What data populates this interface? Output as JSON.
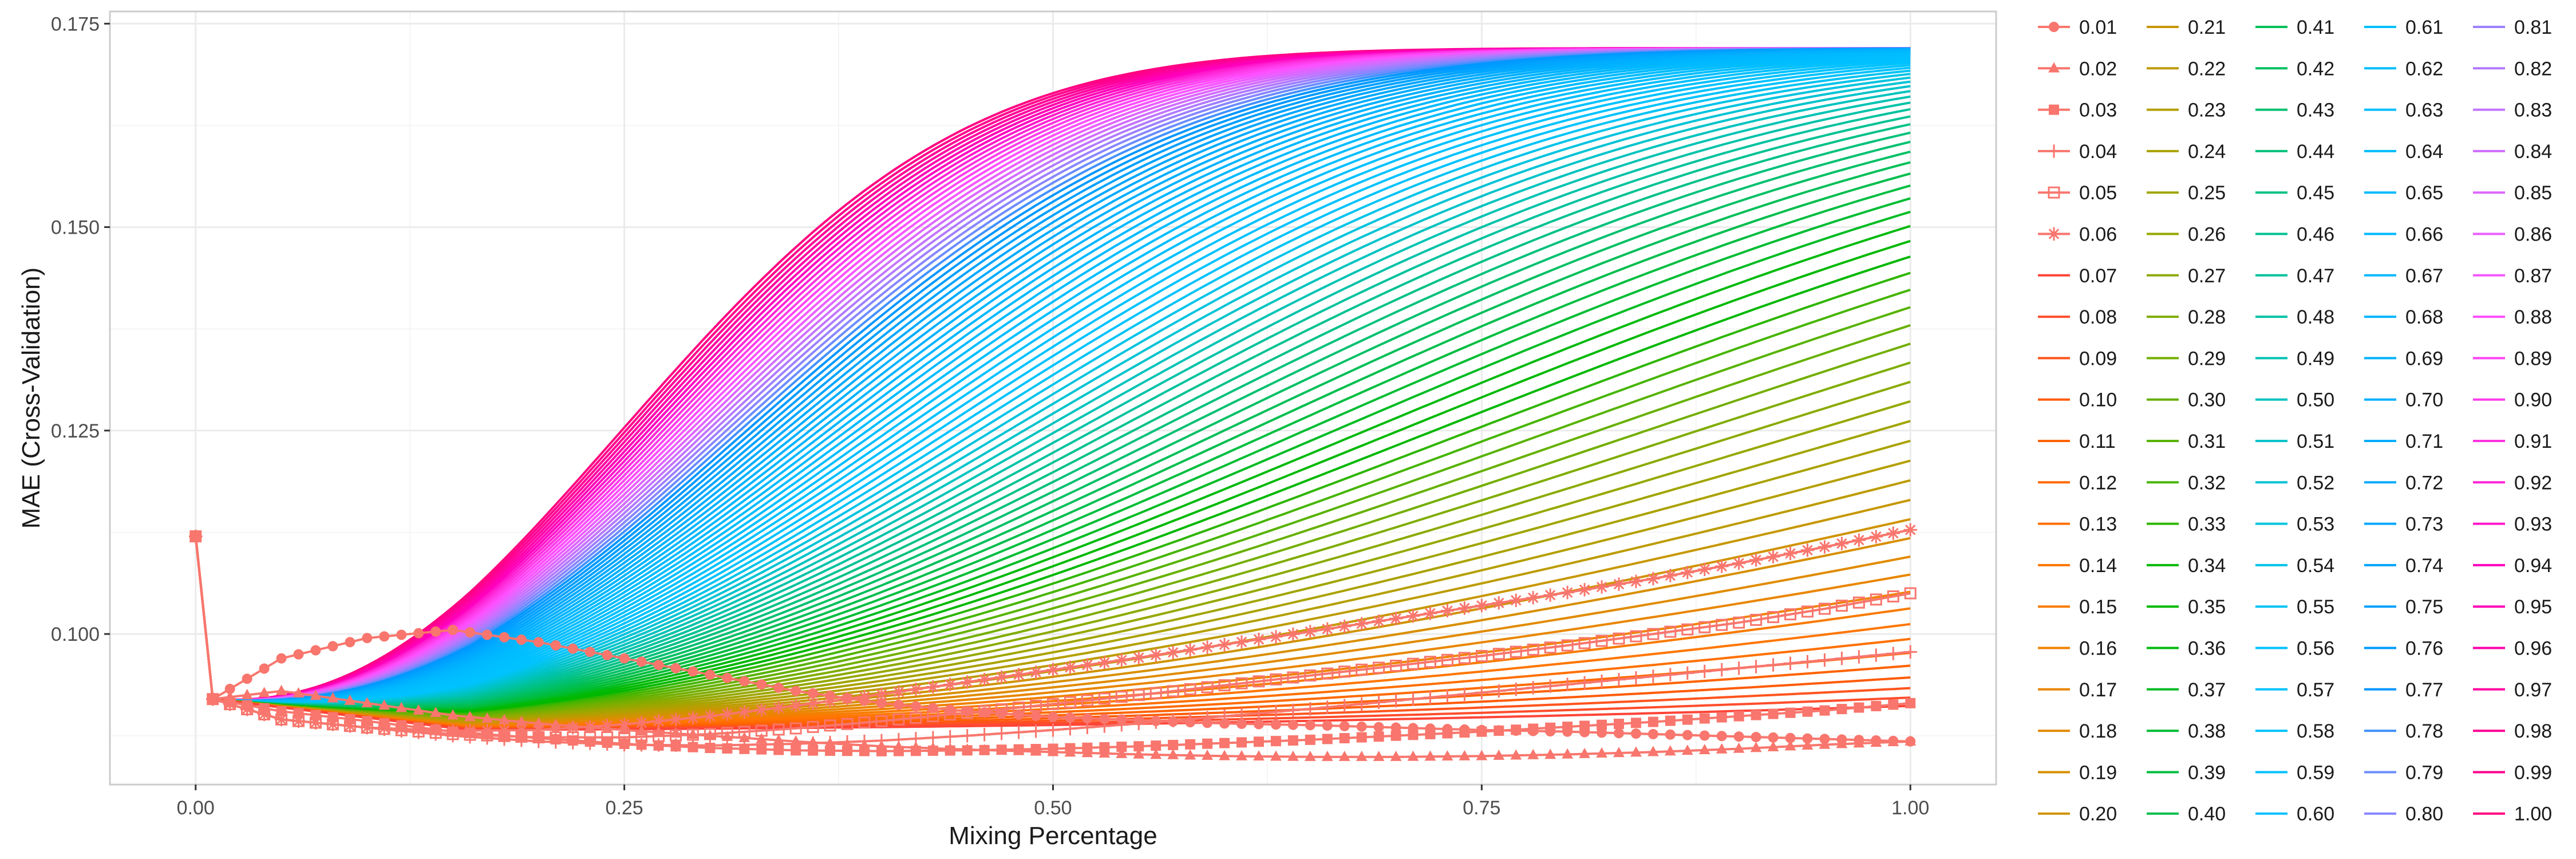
{
  "chart_data": {
    "type": "line",
    "xlabel": "Mixing Percentage",
    "ylabel": "MAE (Cross-Validation)",
    "xlim": [
      -0.05,
      1.05
    ],
    "ylim": [
      0.0815,
      0.1765
    ],
    "x_ticks": [
      "0.00",
      "0.25",
      "0.50",
      "0.75",
      "1.00"
    ],
    "y_ticks": [
      "0.100",
      "0.125",
      "0.150",
      "0.175"
    ],
    "grid": true,
    "legend_position": "right",
    "markers": {
      "0.01": "circle",
      "0.02": "triangle",
      "0.03": "square",
      "0.04": "plus",
      "0.05": "square-open",
      "0.06": "asterisk"
    },
    "x": [
      0.0,
      0.01,
      0.05,
      0.1,
      0.15,
      0.2,
      0.25,
      0.3,
      0.35,
      0.4,
      0.45,
      0.5,
      0.55,
      0.6,
      0.65,
      0.7,
      0.75,
      0.8,
      0.85,
      0.9,
      0.95,
      1.0
    ],
    "series": [
      {
        "name": "0.01",
        "values": [
          0.112,
          0.092,
          0.097,
          0.0995,
          0.1005,
          0.099,
          0.097,
          0.095,
          0.093,
          0.0915,
          0.0905,
          0.0898,
          0.0894,
          0.089,
          0.0888,
          0.0885,
          0.0882,
          0.088,
          0.0877,
          0.0874,
          0.0871,
          0.0868
        ]
      },
      {
        "name": "0.02",
        "values": [
          0.112,
          0.092,
          0.093,
          0.0915,
          0.09,
          0.089,
          0.0882,
          0.0875,
          0.0868,
          0.0862,
          0.0858,
          0.0855,
          0.0852,
          0.085,
          0.0849,
          0.0849,
          0.085,
          0.0852,
          0.0855,
          0.0859,
          0.0864,
          0.0868
        ]
      },
      {
        "name": "0.03",
        "values": [
          0.112,
          0.092,
          0.0905,
          0.0893,
          0.088,
          0.0872,
          0.0865,
          0.086,
          0.0857,
          0.0856,
          0.0857,
          0.0859,
          0.0862,
          0.0866,
          0.087,
          0.0875,
          0.088,
          0.0886,
          0.0892,
          0.0899,
          0.0906,
          0.0915
        ]
      },
      {
        "name": "0.04",
        "values": [
          0.112,
          0.092,
          0.0895,
          0.0885,
          0.0875,
          0.0868,
          0.0864,
          0.0863,
          0.0865,
          0.0869,
          0.0875,
          0.0882,
          0.089,
          0.0899,
          0.0908,
          0.0918,
          0.0928,
          0.0938,
          0.0948,
          0.0958,
          0.0968,
          0.0978
        ]
      },
      {
        "name": "0.05",
        "values": [
          0.112,
          0.092,
          0.0895,
          0.0885,
          0.0877,
          0.0873,
          0.0873,
          0.0877,
          0.0884,
          0.0893,
          0.0903,
          0.0914,
          0.0925,
          0.0937,
          0.0949,
          0.0961,
          0.0973,
          0.0986,
          0.1,
          0.1014,
          0.1031,
          0.105
        ]
      },
      {
        "name": "0.06",
        "values": [
          0.112,
          0.092,
          0.0895,
          0.0885,
          0.0881,
          0.0882,
          0.0889,
          0.0899,
          0.0912,
          0.0926,
          0.0941,
          0.0956,
          0.0971,
          0.0987,
          0.1003,
          0.1019,
          0.1035,
          0.1051,
          0.1068,
          0.1087,
          0.1107,
          0.1128
        ]
      }
    ],
    "family_curves": "0.07 to 1.00 in steps of 0.01 follow the same family pattern with increasing parameter",
    "family_plateau": 0.172
  },
  "legend": {
    "entries": [
      "0.01",
      "0.02",
      "0.03",
      "0.04",
      "0.05",
      "0.06",
      "0.07",
      "0.08",
      "0.09",
      "0.10",
      "0.11",
      "0.12",
      "0.13",
      "0.14",
      "0.15",
      "0.16",
      "0.17",
      "0.18",
      "0.19",
      "0.20",
      "0.21",
      "0.22",
      "0.23",
      "0.24",
      "0.25",
      "0.26",
      "0.27",
      "0.28",
      "0.29",
      "0.30",
      "0.31",
      "0.32",
      "0.33",
      "0.34",
      "0.35",
      "0.36",
      "0.37",
      "0.38",
      "0.39",
      "0.40",
      "0.41",
      "0.42",
      "0.43",
      "0.44",
      "0.45",
      "0.46",
      "0.47",
      "0.48",
      "0.49",
      "0.50",
      "0.51",
      "0.52",
      "0.53",
      "0.54",
      "0.55",
      "0.56",
      "0.57",
      "0.58",
      "0.59",
      "0.60",
      "0.61",
      "0.62",
      "0.63",
      "0.64",
      "0.65",
      "0.66",
      "0.67",
      "0.68",
      "0.69",
      "0.70",
      "0.71",
      "0.72",
      "0.73",
      "0.74",
      "0.75",
      "0.76",
      "0.77",
      "0.78",
      "0.79",
      "0.80",
      "0.81",
      "0.82",
      "0.83",
      "0.84",
      "0.85",
      "0.86",
      "0.87",
      "0.88",
      "0.89",
      "0.90",
      "0.91",
      "0.92",
      "0.93",
      "0.94",
      "0.95",
      "0.96",
      "0.97",
      "0.98",
      "0.99",
      "1.00"
    ],
    "columns": 5,
    "rows": 20
  },
  "colors": {
    "background": "#ffffff",
    "panel_border": "#cccccc",
    "grid_major": "#ebebeb",
    "grid_minor": "#f5f5f5",
    "marker_series": "#F8766D"
  }
}
